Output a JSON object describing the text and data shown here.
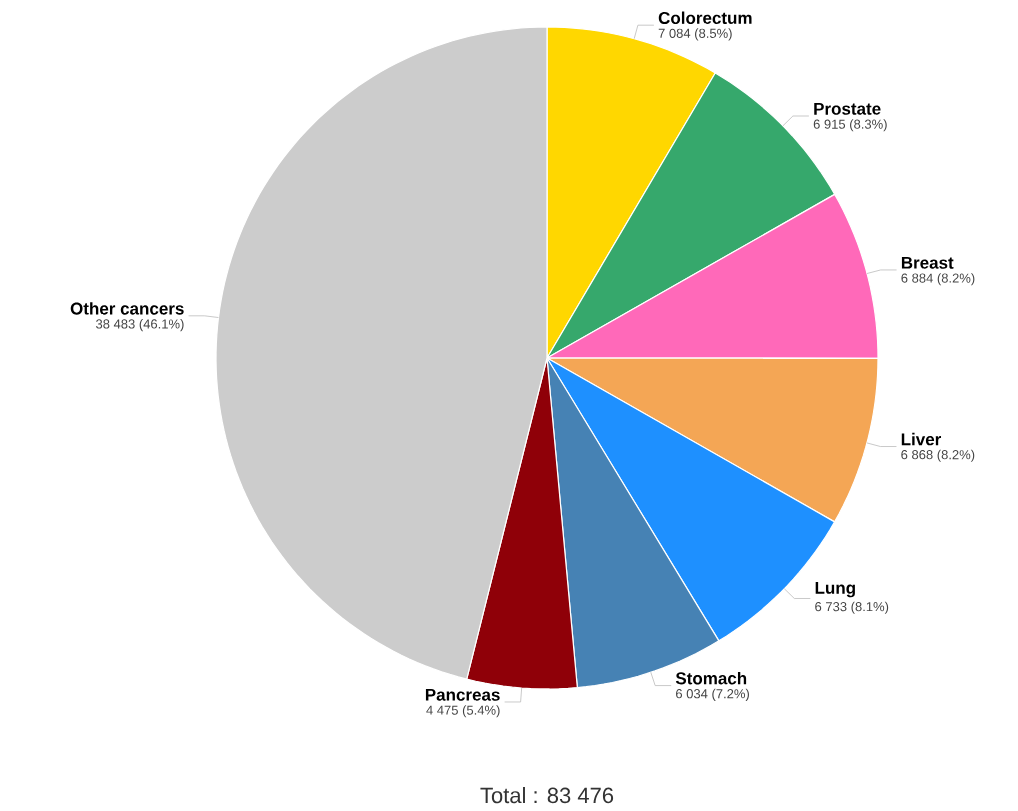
{
  "chart_data": {
    "type": "pie",
    "categories": [
      "Colorectum",
      "Prostate",
      "Breast",
      "Liver",
      "Lung",
      "Stomach",
      "Pancreas",
      "Other cancers"
    ],
    "values": [
      7084,
      6915,
      6884,
      6868,
      6733,
      6034,
      4475,
      38483
    ],
    "colors": [
      "#ffd700",
      "#36a86c",
      "#ff69b9",
      "#f4a655",
      "#1e90ff",
      "#4682b4",
      "#8f0008",
      "#cccccc"
    ],
    "value_labels": [
      "7 084 (8.5%)",
      "6 915 (8.3%)",
      "6 884 (8.2%)",
      "6 868 (8.2%)",
      "6 733 (8.1%)",
      "6 034 (7.2%)",
      "4 475 (5.4%)",
      "38 483 (46.1%)"
    ],
    "annotations": [
      "Total : 83 476"
    ]
  }
}
